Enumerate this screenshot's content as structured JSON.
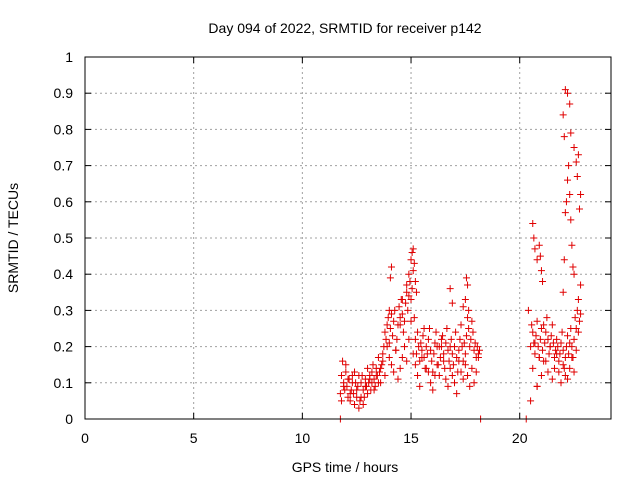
{
  "chart_data": {
    "type": "scatter",
    "title": "Day 094 of 2022, SRMTID for receiver p142",
    "xlabel": "GPS time / hours",
    "ylabel": "SRMTID / TECUs",
    "xlim": [
      0,
      24.2
    ],
    "ylim": [
      0,
      1
    ],
    "x_ticks": [
      0,
      5,
      10,
      15,
      20
    ],
    "x_tick_labels": [
      "0",
      "5",
      "10",
      "15",
      "20"
    ],
    "y_ticks": [
      0,
      0.1,
      0.2,
      0.3,
      0.4,
      0.5,
      0.6,
      0.7,
      0.8,
      0.9,
      1
    ],
    "y_tick_labels": [
      "0",
      "0.1",
      "0.2",
      "0.3",
      "0.4",
      "0.5",
      "0.6",
      "0.7",
      "0.8",
      "0.9",
      "1"
    ],
    "grid": true,
    "marker": "+",
    "marker_color": "#e00000",
    "series": [
      {
        "x": [
          11.75,
          11.8,
          11.85,
          11.9,
          11.95,
          12.0,
          12.05,
          12.1,
          12.15,
          12.2,
          12.25,
          12.3,
          12.35,
          12.4,
          12.45,
          12.5,
          12.55,
          12.6,
          12.65,
          12.7,
          12.75,
          12.8,
          12.85,
          12.9,
          12.95,
          13.0,
          13.05,
          13.1,
          13.15,
          13.2,
          13.25,
          13.3,
          13.35,
          13.4,
          13.45,
          13.5,
          13.55,
          13.6,
          13.65,
          13.7,
          13.75,
          13.8,
          13.85,
          13.9,
          13.95,
          14.0,
          14.05,
          14.1,
          14.15,
          14.2,
          14.25,
          14.3,
          14.35,
          14.4,
          14.45,
          14.5,
          14.55,
          14.6,
          14.65,
          14.7,
          14.75,
          14.8,
          14.85,
          14.9,
          14.95,
          15.0,
          15.05,
          15.1,
          15.15,
          15.2,
          15.25,
          15.3,
          15.35,
          15.4,
          15.45,
          15.5,
          15.55,
          15.6,
          15.65,
          15.7,
          15.75,
          15.8,
          15.85,
          15.9,
          15.95,
          16.0,
          16.05,
          16.1,
          16.15,
          16.2,
          16.25,
          16.3,
          16.35,
          16.4,
          16.45,
          16.5,
          16.55,
          16.6,
          16.65,
          16.7,
          16.75,
          16.8,
          16.85,
          16.9,
          16.95,
          17.0,
          17.05,
          17.1,
          17.15,
          17.2,
          17.25,
          17.3,
          17.35,
          17.4,
          17.45,
          17.5,
          17.55,
          17.6,
          17.65,
          17.7,
          17.75,
          17.8,
          17.85,
          17.9,
          17.95,
          18.0,
          18.05,
          18.1,
          18.15,
          11.8,
          11.9,
          12.0,
          12.1,
          12.2,
          12.3,
          12.4,
          12.5,
          12.6,
          12.7,
          12.8,
          12.9,
          13.0,
          13.1,
          13.2,
          13.3,
          13.4,
          13.5,
          13.6,
          13.7,
          13.8,
          13.9,
          14.0,
          14.1,
          14.2,
          14.3,
          14.4,
          14.5,
          14.6,
          14.7,
          14.8,
          14.9,
          15.0,
          15.1,
          15.2,
          15.3,
          15.4,
          15.5,
          15.6,
          15.7,
          15.8,
          15.9,
          16.0,
          16.1,
          16.2,
          16.3,
          16.4,
          16.5,
          16.6,
          16.7,
          16.8,
          16.9,
          17.0,
          17.1,
          17.2,
          17.3,
          17.4,
          17.5,
          17.6,
          17.7,
          17.8,
          17.9,
          18.0,
          18.1,
          14.0,
          14.05,
          14.1,
          14.5,
          14.6,
          14.8,
          14.9,
          15.0,
          15.05,
          15.1,
          15.15,
          15.2,
          15.25,
          16.8,
          16.9,
          17.4,
          17.5,
          17.55,
          17.6,
          17.65,
          11.75,
          18.2,
          20.3,
          20.5,
          20.55,
          20.6,
          20.65,
          20.7,
          20.75,
          20.8,
          20.85,
          20.9,
          20.95,
          21.0,
          21.05,
          21.1,
          21.15,
          21.2,
          21.25,
          21.3,
          21.35,
          21.4,
          21.45,
          21.5,
          21.55,
          21.6,
          21.65,
          21.7,
          21.75,
          21.8,
          21.85,
          21.9,
          21.95,
          22.0,
          22.05,
          22.1,
          22.15,
          22.2,
          22.25,
          22.3,
          22.35,
          22.4,
          22.45,
          22.5,
          22.55,
          22.6,
          22.65,
          22.7,
          22.75,
          22.8,
          20.5,
          20.6,
          20.7,
          20.8,
          20.9,
          21.0,
          21.1,
          21.2,
          21.3,
          21.4,
          21.5,
          21.6,
          21.7,
          21.8,
          21.9,
          22.0,
          22.1,
          22.2,
          22.3,
          22.4,
          22.5,
          22.6,
          22.7,
          22.8,
          20.6,
          20.65,
          20.7,
          20.8,
          20.9,
          20.95,
          21.0,
          21.05,
          22.0,
          22.05,
          22.1,
          22.15,
          22.2,
          22.25,
          22.3,
          22.35,
          22.4,
          22.45,
          22.5,
          22.0,
          22.05,
          22.1,
          22.2,
          22.3,
          22.35,
          22.5,
          22.6,
          22.65,
          22.7,
          22.75,
          22.8,
          20.4,
          20.8
        ],
        "y": [
          0.07,
          0.12,
          0.16,
          0.1,
          0.08,
          0.13,
          0.09,
          0.06,
          0.11,
          0.05,
          0.08,
          0.12,
          0.07,
          0.04,
          0.1,
          0.06,
          0.09,
          0.03,
          0.05,
          0.1,
          0.12,
          0.08,
          0.06,
          0.11,
          0.09,
          0.14,
          0.1,
          0.12,
          0.08,
          0.13,
          0.15,
          0.11,
          0.09,
          0.14,
          0.12,
          0.17,
          0.13,
          0.1,
          0.15,
          0.18,
          0.2,
          0.24,
          0.22,
          0.26,
          0.28,
          0.21,
          0.25,
          0.29,
          0.23,
          0.27,
          0.3,
          0.19,
          0.22,
          0.26,
          0.31,
          0.28,
          0.33,
          0.29,
          0.24,
          0.27,
          0.32,
          0.35,
          0.3,
          0.34,
          0.38,
          0.33,
          0.36,
          0.41,
          0.28,
          0.22,
          0.18,
          0.24,
          0.2,
          0.16,
          0.21,
          0.19,
          0.23,
          0.17,
          0.14,
          0.2,
          0.18,
          0.22,
          0.25,
          0.19,
          0.16,
          0.13,
          0.18,
          0.21,
          0.24,
          0.2,
          0.15,
          0.12,
          0.17,
          0.2,
          0.23,
          0.18,
          0.14,
          0.21,
          0.25,
          0.19,
          0.16,
          0.2,
          0.22,
          0.18,
          0.15,
          0.2,
          0.24,
          0.17,
          0.13,
          0.19,
          0.22,
          0.26,
          0.2,
          0.16,
          0.21,
          0.18,
          0.23,
          0.28,
          0.25,
          0.2,
          0.22,
          0.27,
          0.24,
          0.19,
          0.21,
          0.17,
          0.2,
          0.18,
          0.19,
          0.05,
          0.09,
          0.15,
          0.11,
          0.07,
          0.1,
          0.13,
          0.08,
          0.12,
          0.06,
          0.04,
          0.09,
          0.07,
          0.11,
          0.1,
          0.08,
          0.12,
          0.1,
          0.14,
          0.16,
          0.12,
          0.2,
          0.17,
          0.15,
          0.13,
          0.19,
          0.11,
          0.14,
          0.17,
          0.2,
          0.16,
          0.22,
          0.27,
          0.18,
          0.15,
          0.12,
          0.09,
          0.17,
          0.25,
          0.14,
          0.13,
          0.1,
          0.08,
          0.12,
          0.15,
          0.2,
          0.22,
          0.16,
          0.11,
          0.09,
          0.14,
          0.12,
          0.1,
          0.07,
          0.16,
          0.13,
          0.11,
          0.15,
          0.12,
          0.09,
          0.14,
          0.1,
          0.13,
          0.17,
          0.3,
          0.39,
          0.42,
          0.26,
          0.33,
          0.37,
          0.4,
          0.44,
          0.46,
          0.47,
          0.43,
          0.38,
          0.35,
          0.36,
          0.32,
          0.31,
          0.33,
          0.39,
          0.37,
          0.3,
          0.0,
          0.0,
          0.0,
          0.2,
          0.26,
          0.24,
          0.21,
          0.18,
          0.23,
          0.27,
          0.2,
          0.17,
          0.22,
          0.25,
          0.19,
          0.16,
          0.21,
          0.24,
          0.28,
          0.22,
          0.18,
          0.2,
          0.23,
          0.26,
          0.21,
          0.17,
          0.19,
          0.22,
          0.2,
          0.16,
          0.18,
          0.21,
          0.24,
          0.19,
          0.14,
          0.17,
          0.2,
          0.23,
          0.18,
          0.21,
          0.25,
          0.2,
          0.17,
          0.22,
          0.28,
          0.25,
          0.3,
          0.33,
          0.27,
          0.29,
          0.05,
          0.14,
          0.21,
          0.09,
          0.17,
          0.12,
          0.26,
          0.16,
          0.13,
          0.2,
          0.11,
          0.14,
          0.18,
          0.13,
          0.1,
          0.15,
          0.12,
          0.11,
          0.14,
          0.17,
          0.13,
          0.19,
          0.24,
          0.37,
          0.54,
          0.5,
          0.47,
          0.44,
          0.48,
          0.45,
          0.41,
          0.38,
          0.35,
          0.44,
          0.57,
          0.6,
          0.66,
          0.7,
          0.62,
          0.55,
          0.48,
          0.42,
          0.4,
          0.84,
          0.78,
          0.91,
          0.9,
          0.87,
          0.79,
          0.75,
          0.71,
          0.67,
          0.73,
          0.58,
          0.62,
          0.3,
          0.09
        ]
      }
    ]
  }
}
